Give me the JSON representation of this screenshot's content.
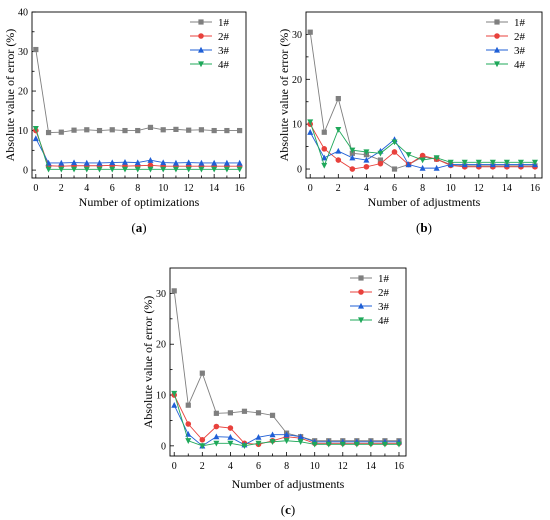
{
  "series_colors": [
    "#7f7f7f",
    "#e8413c",
    "#1f5fd6",
    "#1fa85a"
  ],
  "chart_data": [
    {
      "type": "line",
      "panel_label": "a",
      "xlabel": "Number of optimizations",
      "ylabel": "Absolute value of error (%)",
      "xlim": [
        -0.3,
        16.5
      ],
      "ylim": [
        -2,
        40
      ],
      "xticks": [
        0,
        2,
        4,
        6,
        8,
        10,
        12,
        14,
        16
      ],
      "yticks": [
        0,
        10,
        20,
        30,
        40
      ],
      "legend_position": "top-right",
      "x": [
        0,
        1,
        2,
        3,
        4,
        5,
        6,
        7,
        8,
        9,
        10,
        11,
        12,
        13,
        14,
        15,
        16
      ],
      "series": [
        {
          "name": "1#",
          "marker": "square",
          "values": [
            30.5,
            9.5,
            9.6,
            10.1,
            10.2,
            10.0,
            10.2,
            10.0,
            10.0,
            10.8,
            10.2,
            10.3,
            10.1,
            10.2,
            10.0,
            10.0,
            10.0
          ]
        },
        {
          "name": "2#",
          "marker": "circle",
          "values": [
            10.0,
            1.1,
            1.0,
            1.1,
            1.1,
            1.1,
            1.2,
            1.0,
            1.1,
            1.2,
            1.0,
            1.0,
            1.0,
            1.0,
            1.0,
            1.0,
            1.0
          ]
        },
        {
          "name": "3#",
          "marker": "triangle-up",
          "values": [
            8.0,
            1.8,
            1.8,
            1.9,
            1.8,
            1.8,
            1.9,
            2.0,
            1.9,
            2.5,
            1.9,
            1.8,
            1.9,
            1.8,
            1.8,
            1.8,
            1.8
          ]
        },
        {
          "name": "4#",
          "marker": "triangle-down",
          "values": [
            10.5,
            0.2,
            0.2,
            0.2,
            0.2,
            0.2,
            0.2,
            0.2,
            0.2,
            0.2,
            0.2,
            0.2,
            0.2,
            0.2,
            0.2,
            0.2,
            0.2
          ]
        }
      ]
    },
    {
      "type": "line",
      "panel_label": "b",
      "xlabel": "Number of adjustments",
      "ylabel": "Absolute value of error (%)",
      "xlim": [
        -0.3,
        16.5
      ],
      "ylim": [
        -2,
        35
      ],
      "xticks": [
        0,
        2,
        4,
        6,
        8,
        10,
        12,
        14,
        16
      ],
      "yticks": [
        0,
        10,
        20,
        30
      ],
      "legend_position": "top-right",
      "x": [
        0,
        1,
        2,
        3,
        4,
        5,
        6,
        7,
        8,
        9,
        10,
        11,
        12,
        13,
        14,
        15,
        16
      ],
      "series": [
        {
          "name": "1#",
          "marker": "square",
          "values": [
            30.5,
            8.2,
            15.7,
            3.5,
            3.2,
            2.0,
            0.0,
            1.0,
            2.7,
            2.2,
            1.0,
            0.7,
            0.7,
            0.7,
            0.7,
            0.7,
            0.7
          ]
        },
        {
          "name": "2#",
          "marker": "circle",
          "values": [
            10.0,
            4.5,
            2.0,
            0.0,
            0.5,
            1.2,
            3.8,
            1.0,
            3.0,
            2.2,
            0.8,
            0.5,
            0.5,
            0.5,
            0.5,
            0.5,
            0.5
          ]
        },
        {
          "name": "3#",
          "marker": "triangle-up",
          "values": [
            8.2,
            2.5,
            4.0,
            2.5,
            2.0,
            4.0,
            6.6,
            1.0,
            0.2,
            0.2,
            1.0,
            1.0,
            1.0,
            1.0,
            1.0,
            1.0,
            1.0
          ]
        },
        {
          "name": "4#",
          "marker": "triangle-down",
          "values": [
            10.5,
            0.8,
            8.8,
            4.2,
            3.8,
            3.5,
            6.0,
            3.2,
            2.0,
            2.5,
            1.5,
            1.5,
            1.5,
            1.5,
            1.5,
            1.5,
            1.5
          ]
        }
      ]
    },
    {
      "type": "line",
      "panel_label": "c",
      "xlabel": "Number of adjustments",
      "ylabel": "Absolute value of error (%)",
      "xlim": [
        -0.3,
        16.5
      ],
      "ylim": [
        -2,
        35
      ],
      "xticks": [
        0,
        2,
        4,
        6,
        8,
        10,
        12,
        14,
        16
      ],
      "yticks": [
        0,
        10,
        20,
        30
      ],
      "legend_position": "top-right",
      "x": [
        0,
        1,
        2,
        3,
        4,
        5,
        6,
        7,
        8,
        9,
        10,
        11,
        12,
        13,
        14,
        15,
        16
      ],
      "series": [
        {
          "name": "1#",
          "marker": "square",
          "values": [
            30.5,
            8.0,
            14.3,
            6.4,
            6.5,
            6.8,
            6.5,
            6.0,
            2.5,
            1.8,
            1.0,
            1.0,
            1.0,
            1.0,
            1.0,
            1.0,
            1.0
          ]
        },
        {
          "name": "2#",
          "marker": "circle",
          "values": [
            10.0,
            4.3,
            1.2,
            3.8,
            3.5,
            0.5,
            0.3,
            1.0,
            1.8,
            1.5,
            0.5,
            0.5,
            0.5,
            0.5,
            0.5,
            0.5,
            0.5
          ]
        },
        {
          "name": "3#",
          "marker": "triangle-up",
          "values": [
            8.0,
            2.3,
            0.0,
            1.8,
            1.7,
            0.2,
            1.7,
            2.2,
            2.2,
            1.8,
            0.8,
            0.8,
            0.8,
            0.8,
            0.8,
            0.8,
            0.8
          ]
        },
        {
          "name": "4#",
          "marker": "triangle-down",
          "values": [
            10.3,
            1.0,
            0.0,
            0.5,
            0.5,
            0.0,
            0.5,
            0.8,
            1.0,
            0.8,
            0.3,
            0.3,
            0.3,
            0.3,
            0.3,
            0.3,
            0.3
          ]
        }
      ]
    }
  ]
}
